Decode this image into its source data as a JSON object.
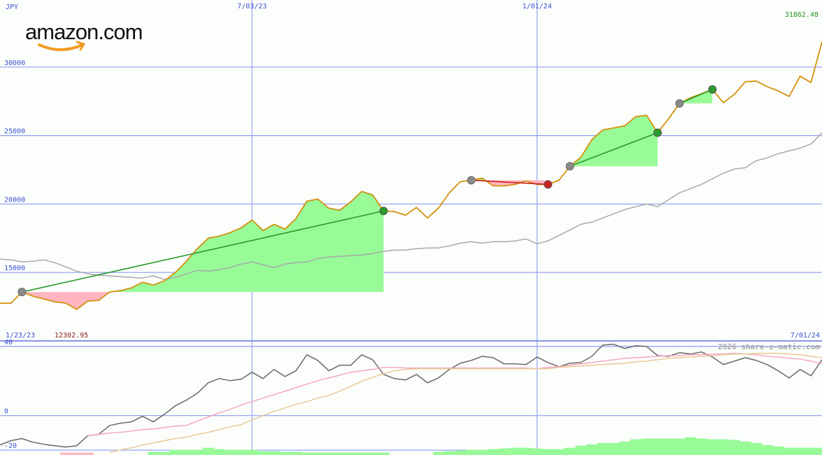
{
  "logo": "amazon.com",
  "credit": "2026 share-o-matic.com",
  "chart_data": [
    {
      "type": "line",
      "y_label": "JPY",
      "categories": [
        "1/23/23",
        null,
        null,
        null,
        null,
        null,
        null,
        null,
        null,
        null,
        null,
        null,
        null,
        null,
        null,
        null,
        null,
        null,
        null,
        null,
        null,
        null,
        null,
        "7/03/23",
        null,
        null,
        null,
        null,
        null,
        null,
        null,
        null,
        null,
        null,
        null,
        null,
        null,
        null,
        null,
        null,
        null,
        null,
        null,
        null,
        null,
        null,
        null,
        null,
        null,
        "1/01/24",
        null,
        null,
        null,
        null,
        null,
        null,
        null,
        null,
        null,
        null,
        null,
        null,
        null,
        null,
        null,
        null,
        null,
        null,
        null,
        null,
        null,
        null,
        null,
        null,
        null,
        "7/01/24"
      ],
      "series": [
        {
          "color": "#d4900c",
          "values": [
            12755,
            12755,
            13570,
            13265,
            13061,
            12857,
            12755,
            12302.95,
            12908,
            12959,
            13570,
            13672,
            13877,
            14285,
            14081,
            14387,
            14999,
            15816,
            16734,
            17500,
            17653,
            17908,
            18265,
            18826,
            18061,
            18520,
            18163,
            18928,
            20204,
            20357,
            19694,
            19541,
            20153,
            20918,
            20663,
            19490,
            19439,
            19184,
            19745,
            18980,
            19694,
            20816,
            21633,
            21735,
            21888,
            21327,
            21327,
            21429,
            21684,
            21429,
            21429,
            21735,
            22755,
            23418,
            24694,
            25408,
            25561,
            25714,
            26378,
            26480,
            25204,
            26225,
            27347,
            27755,
            28061,
            28368,
            27398,
            28010,
            28929,
            28980,
            28571,
            28265,
            27857,
            29337,
            28877,
            31862.48
          ]
        },
        {
          "color": "#a8a8a8",
          "values": [
            15970,
            15920,
            15770,
            15820,
            15920,
            15710,
            15410,
            15100,
            14900,
            14800,
            14750,
            14690,
            14640,
            14590,
            14750,
            14490,
            14640,
            14900,
            15150,
            15100,
            15200,
            15360,
            15610,
            15770,
            15560,
            15360,
            15610,
            15710,
            15770,
            16020,
            16120,
            16170,
            16230,
            16280,
            16380,
            16530,
            16630,
            16630,
            16740,
            16790,
            16790,
            16940,
            17140,
            17250,
            17140,
            17250,
            17250,
            17300,
            17450,
            17090,
            17300,
            17700,
            18110,
            18520,
            18670,
            18980,
            19290,
            19590,
            19800,
            20000,
            19800,
            20310,
            20820,
            21120,
            21430,
            21840,
            22250,
            22550,
            22650,
            23160,
            23370,
            23670,
            23880,
            24080,
            24390,
            25200
          ]
        }
      ],
      "trades": [
        {
          "start": 2,
          "end": 35,
          "color": "#2a9a2a"
        },
        {
          "start": 43,
          "end": 50,
          "color": "#cc2020"
        },
        {
          "start": 52,
          "end": 60,
          "color": "#2a9a2a"
        },
        {
          "start": 62,
          "end": 65,
          "color": "#2a9a2a"
        }
      ],
      "gain_fill": "#98fb98",
      "loss_fill": "#ffb6c1",
      "ylim": [
        10000,
        34900
      ],
      "yticks": [
        15000,
        20000,
        25000,
        30000
      ],
      "grid": true
    },
    {
      "type": "line",
      "series": [
        {
          "type": "bar",
          "color": "#98fb98",
          "values": [
            null,
            null,
            null,
            null,
            null,
            null,
            null,
            null,
            null,
            null,
            null,
            null,
            null,
            null,
            -21.0,
            -21.0,
            -19.8,
            -19.8,
            -19.8,
            -18.6,
            -19.4,
            -19.8,
            -19.8,
            -19.8,
            -20.6,
            -20.6,
            -21.0,
            -21.0,
            -21.4,
            -21.4,
            -21.4,
            -21.4,
            -21.4,
            -21.4,
            -21.4,
            -21.4,
            null,
            null,
            null,
            null,
            -21.0,
            -20.6,
            -20.2,
            -19.8,
            -19.8,
            -19.4,
            -19.0,
            -18.6,
            -18.6,
            -19.0,
            -19.4,
            -19.4,
            -18.6,
            -17.4,
            -16.6,
            -15.8,
            -15.8,
            -15.0,
            -13.7,
            -13.3,
            -13.3,
            -13.3,
            -13.3,
            -12.5,
            -13.3,
            -13.7,
            -13.7,
            -14.1,
            -15.0,
            -15.8,
            -17.0,
            -17.8,
            -18.6,
            -18.6,
            -18.6,
            -18.6
          ]
        },
        {
          "type": "bar",
          "color": "#ffb6c1",
          "values": [
            null,
            null,
            null,
            null,
            null,
            null,
            -21.4,
            -21.4,
            -21.4,
            null,
            null,
            null,
            null,
            null,
            null,
            null,
            null,
            null,
            null,
            null,
            null,
            null,
            null,
            null,
            null,
            null,
            null,
            null,
            null,
            null,
            null,
            null,
            null,
            null,
            null,
            null,
            null,
            null,
            null,
            null,
            null,
            null,
            null,
            null,
            null,
            null,
            null,
            null,
            null,
            null,
            null,
            null,
            null,
            null,
            null,
            null,
            null,
            null,
            null,
            null,
            null,
            null,
            null,
            null,
            null,
            null,
            null,
            null,
            null,
            null,
            null,
            null,
            null,
            null,
            null,
            null
          ]
        },
        {
          "color": "#686868",
          "values": [
            -17.0,
            -14.5,
            -13.3,
            -15.4,
            -16.6,
            -17.4,
            -18.2,
            -17.4,
            -11.7,
            -10.9,
            -5.7,
            -4.4,
            -3.6,
            -0.4,
            -3.6,
            0.8,
            5.7,
            8.9,
            12.9,
            19.0,
            21.4,
            20.2,
            21.0,
            25.1,
            21.4,
            26.7,
            22.6,
            25.9,
            35.2,
            31.9,
            25.9,
            29.1,
            29.1,
            35.2,
            32.3,
            23.8,
            21.4,
            20.6,
            23.8,
            19.0,
            21.8,
            26.7,
            30.3,
            31.9,
            34.3,
            33.5,
            29.9,
            29.9,
            29.5,
            33.9,
            30.7,
            28.3,
            30.3,
            30.7,
            34.3,
            40.8,
            41.2,
            38.8,
            40.4,
            40.0,
            34.7,
            34.3,
            36.4,
            35.6,
            36.8,
            33.9,
            29.5,
            31.5,
            33.5,
            31.9,
            29.5,
            25.9,
            21.8,
            26.7,
            23.0,
            32.3
          ]
        },
        {
          "color": "#f4a8c4",
          "values": [
            null,
            null,
            null,
            null,
            null,
            null,
            null,
            null,
            -11.7,
            -10.9,
            -10.1,
            -9.7,
            -8.9,
            -8.1,
            -7.7,
            -6.9,
            -6.1,
            -5.7,
            -3.2,
            -0.8,
            1.6,
            3.6,
            6.1,
            8.1,
            10.1,
            12.1,
            14.1,
            16.2,
            18.2,
            20.2,
            21.8,
            23.4,
            25.1,
            25.9,
            26.7,
            27.9,
            27.9,
            27.5,
            27.5,
            27.5,
            27.5,
            27.5,
            27.5,
            27.5,
            27.5,
            27.5,
            27.5,
            27.5,
            27.5,
            27.1,
            27.9,
            28.3,
            29.1,
            29.9,
            30.7,
            31.5,
            32.3,
            33.1,
            33.5,
            33.9,
            34.3,
            34.7,
            34.7,
            35.2,
            35.2,
            35.6,
            35.6,
            36.0,
            35.6,
            35.2,
            34.3,
            33.9,
            33.1,
            32.7,
            31.5,
            29.9
          ]
        },
        {
          "color": "#e8c898",
          "values": [
            null,
            null,
            null,
            null,
            null,
            null,
            null,
            null,
            null,
            null,
            -21.4,
            -19.8,
            -18.6,
            -17.0,
            -15.8,
            -14.5,
            -13.3,
            -12.5,
            -10.9,
            -9.7,
            -8.1,
            -6.5,
            -5.3,
            -2.4,
            0.0,
            2.4,
            4.4,
            6.5,
            8.1,
            10.1,
            11.7,
            14.1,
            17.0,
            19.8,
            22.2,
            24.2,
            25.9,
            26.7,
            27.1,
            27.1,
            27.1,
            27.1,
            27.1,
            27.1,
            27.1,
            27.1,
            27.1,
            27.1,
            27.1,
            27.1,
            27.1,
            27.9,
            28.3,
            28.7,
            29.1,
            29.5,
            29.9,
            30.3,
            31.1,
            31.5,
            32.3,
            33.1,
            33.5,
            33.9,
            34.3,
            34.7,
            35.2,
            35.6,
            35.6,
            36.0,
            36.0,
            36.0,
            35.6,
            35.2,
            34.3,
            33.5
          ]
        }
      ],
      "ylim": [
        -22.8,
        43.2
      ],
      "yticks": [
        -20,
        0,
        40
      ],
      "grid": true
    }
  ]
}
